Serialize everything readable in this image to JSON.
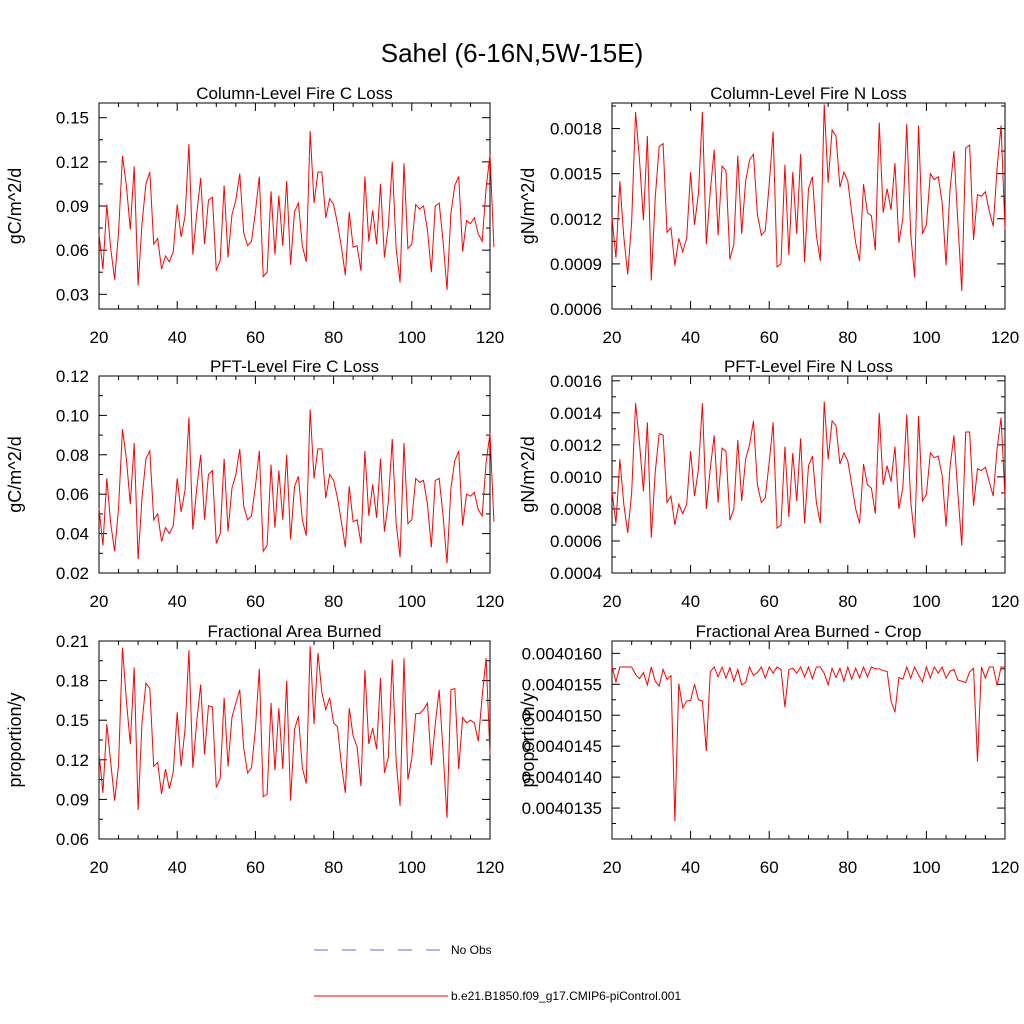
{
  "figure": {
    "title": "Sahel (6-16N,5W-15E)",
    "line_color": "#ff0000",
    "obs_color": "#6a6ad6"
  },
  "legend": {
    "obs_label": "No Obs",
    "model_label": "b.e21.B1850.f09_g17.CMIP6-piControl.001"
  },
  "chart_data": [
    {
      "type": "line",
      "title": "Column-Level Fire C Loss",
      "xlabel": "",
      "ylabel": "gC/m^2/d",
      "xlim": [
        20,
        120
      ],
      "ylim": [
        0.02,
        0.16
      ],
      "xticks": [
        20,
        40,
        60,
        80,
        100,
        120
      ],
      "yticks": [
        0.03,
        0.06,
        0.09,
        0.12,
        0.15
      ],
      "ytick_labels": [
        "0.03",
        "0.06",
        "0.09",
        "0.12",
        "0.15"
      ],
      "x_start": 20,
      "series": [
        {
          "name": "b.e21.B1850.f09_g17.CMIP6-piControl.001",
          "values": [
            0.071,
            0.047,
            0.091,
            0.061,
            0.04,
            0.072,
            0.124,
            0.104,
            0.074,
            0.117,
            0.036,
            0.078,
            0.105,
            0.113,
            0.064,
            0.068,
            0.047,
            0.056,
            0.052,
            0.059,
            0.091,
            0.069,
            0.083,
            0.132,
            0.057,
            0.085,
            0.109,
            0.064,
            0.094,
            0.096,
            0.046,
            0.053,
            0.104,
            0.055,
            0.084,
            0.094,
            0.112,
            0.072,
            0.063,
            0.066,
            0.086,
            0.11,
            0.042,
            0.045,
            0.1,
            0.057,
            0.097,
            0.063,
            0.107,
            0.05,
            0.086,
            0.092,
            0.063,
            0.052,
            0.141,
            0.092,
            0.113,
            0.113,
            0.082,
            0.095,
            0.091,
            0.078,
            0.062,
            0.043,
            0.086,
            0.062,
            0.063,
            0.046,
            0.11,
            0.066,
            0.087,
            0.064,
            0.105,
            0.055,
            0.076,
            0.12,
            0.061,
            0.038,
            0.119,
            0.061,
            0.064,
            0.091,
            0.088,
            0.09,
            0.074,
            0.045,
            0.09,
            0.092,
            0.066,
            0.033,
            0.085,
            0.104,
            0.11,
            0.059,
            0.08,
            0.078,
            0.082,
            0.071,
            0.066,
            0.102,
            0.125,
            0.062
          ]
        }
      ]
    },
    {
      "type": "line",
      "title": "Column-Level Fire N Loss",
      "xlabel": "",
      "ylabel": "gN/m^2/d",
      "xlim": [
        20,
        120
      ],
      "ylim": [
        0.0006,
        0.00197
      ],
      "xticks": [
        20,
        40,
        60,
        80,
        100,
        120
      ],
      "yticks": [
        0.0006,
        0.0009,
        0.0012,
        0.0015,
        0.0018
      ],
      "ytick_labels": [
        "0.0006",
        "0.0009",
        "0.0012",
        "0.0015",
        "0.0018"
      ],
      "x_start": 20,
      "series": [
        {
          "name": "b.e21.B1850.f09_g17.CMIP6-piControl.001",
          "values": [
            0.00121,
            0.00094,
            0.00145,
            0.00108,
            0.00083,
            0.00118,
            0.00191,
            0.00159,
            0.00119,
            0.00175,
            0.00079,
            0.00134,
            0.00168,
            0.0017,
            0.00111,
            0.00114,
            0.00089,
            0.00107,
            0.00098,
            0.00107,
            0.00151,
            0.00116,
            0.00137,
            0.00191,
            0.00103,
            0.00138,
            0.00166,
            0.00109,
            0.00155,
            0.00152,
            0.00093,
            0.00103,
            0.00162,
            0.0011,
            0.00145,
            0.00159,
            0.00163,
            0.00123,
            0.00109,
            0.00112,
            0.00143,
            0.00178,
            0.00088,
            0.0009,
            0.00156,
            0.00096,
            0.00151,
            0.0011,
            0.00163,
            0.00091,
            0.0014,
            0.00148,
            0.00109,
            0.00092,
            0.00196,
            0.00144,
            0.00179,
            0.00175,
            0.00141,
            0.00151,
            0.00145,
            0.00124,
            0.00104,
            0.00092,
            0.00143,
            0.00124,
            0.00122,
            0.00099,
            0.00184,
            0.00124,
            0.0014,
            0.00126,
            0.00157,
            0.00104,
            0.0012,
            0.00183,
            0.0011,
            0.00081,
            0.00182,
            0.0011,
            0.00116,
            0.0015,
            0.00146,
            0.00148,
            0.00131,
            0.00089,
            0.00139,
            0.00165,
            0.00118,
            0.00072,
            0.00167,
            0.00169,
            0.00106,
            0.00136,
            0.00135,
            0.00138,
            0.00125,
            0.00115,
            0.00154,
            0.00182,
            0.00113
          ]
        }
      ]
    },
    {
      "type": "line",
      "title": "PFT-Level Fire C Loss",
      "xlabel": "",
      "ylabel": "gC/m^2/d",
      "xlim": [
        20,
        120
      ],
      "ylim": [
        0.02,
        0.12
      ],
      "xticks": [
        20,
        40,
        60,
        80,
        100,
        120
      ],
      "yticks": [
        0.02,
        0.04,
        0.06,
        0.08,
        0.1,
        0.12
      ],
      "ytick_labels": [
        "0.02",
        "0.04",
        "0.06",
        "0.08",
        "0.10",
        "0.12"
      ],
      "x_start": 20,
      "series": [
        {
          "name": "b.e21.B1850.f09_g17.CMIP6-piControl.001",
          "values": [
            0.053,
            0.034,
            0.068,
            0.045,
            0.031,
            0.053,
            0.093,
            0.078,
            0.055,
            0.086,
            0.027,
            0.058,
            0.078,
            0.082,
            0.047,
            0.05,
            0.036,
            0.043,
            0.04,
            0.044,
            0.068,
            0.051,
            0.062,
            0.099,
            0.042,
            0.063,
            0.08,
            0.047,
            0.07,
            0.072,
            0.035,
            0.04,
            0.078,
            0.041,
            0.063,
            0.07,
            0.083,
            0.054,
            0.047,
            0.049,
            0.064,
            0.082,
            0.031,
            0.034,
            0.075,
            0.043,
            0.072,
            0.047,
            0.08,
            0.037,
            0.064,
            0.069,
            0.047,
            0.039,
            0.103,
            0.068,
            0.083,
            0.083,
            0.058,
            0.07,
            0.067,
            0.058,
            0.046,
            0.033,
            0.064,
            0.046,
            0.047,
            0.035,
            0.082,
            0.049,
            0.065,
            0.048,
            0.078,
            0.041,
            0.056,
            0.088,
            0.045,
            0.028,
            0.086,
            0.045,
            0.047,
            0.068,
            0.066,
            0.067,
            0.055,
            0.033,
            0.067,
            0.068,
            0.049,
            0.025,
            0.063,
            0.077,
            0.082,
            0.044,
            0.06,
            0.059,
            0.061,
            0.052,
            0.049,
            0.076,
            0.091,
            0.046
          ]
        }
      ]
    },
    {
      "type": "line",
      "title": "PFT-Level Fire N Loss",
      "xlabel": "",
      "ylabel": "gN/m^2/d",
      "xlim": [
        20,
        120
      ],
      "ylim": [
        0.0004,
        0.00163
      ],
      "xticks": [
        20,
        40,
        60,
        80,
        100,
        120
      ],
      "yticks": [
        0.0004,
        0.0006,
        0.0008,
        0.001,
        0.0012,
        0.0014,
        0.0016
      ],
      "ytick_labels": [
        "0.0004",
        "0.0006",
        "0.0008",
        "0.0010",
        "0.0012",
        "0.0014",
        "0.0016"
      ],
      "x_start": 20,
      "series": [
        {
          "name": "b.e21.B1850.f09_g17.CMIP6-piControl.001",
          "values": [
            0.00091,
            0.00071,
            0.00111,
            0.00083,
            0.00065,
            0.0009,
            0.00146,
            0.00121,
            0.00091,
            0.00134,
            0.00062,
            0.00103,
            0.00127,
            0.00126,
            0.00084,
            0.00088,
            0.0007,
            0.00083,
            0.00077,
            0.00083,
            0.00116,
            0.00088,
            0.00105,
            0.00146,
            0.0008,
            0.00105,
            0.00126,
            0.00084,
            0.00118,
            0.00116,
            0.00073,
            0.0008,
            0.00123,
            0.00085,
            0.00111,
            0.0012,
            0.00135,
            0.00095,
            0.00084,
            0.00087,
            0.00109,
            0.00134,
            0.00068,
            0.0007,
            0.00119,
            0.00075,
            0.00115,
            0.00085,
            0.00124,
            0.00071,
            0.00107,
            0.00113,
            0.00084,
            0.00071,
            0.00147,
            0.00111,
            0.00135,
            0.00132,
            0.00108,
            0.00115,
            0.0011,
            0.00095,
            0.0008,
            0.00071,
            0.00108,
            0.00095,
            0.00093,
            0.00077,
            0.0014,
            0.00095,
            0.00107,
            0.00097,
            0.00119,
            0.0008,
            0.00093,
            0.00139,
            0.00085,
            0.00062,
            0.00138,
            0.00085,
            0.00089,
            0.00115,
            0.00112,
            0.00113,
            0.00101,
            0.00069,
            0.00106,
            0.00126,
            0.0009,
            0.00057,
            0.00128,
            0.00128,
            0.00082,
            0.00105,
            0.00104,
            0.00106,
            0.00097,
            0.00088,
            0.00118,
            0.00137,
            0.00087
          ]
        }
      ]
    },
    {
      "type": "line",
      "title": "Fractional Area Burned",
      "xlabel": "",
      "ylabel": "proportion/y",
      "xlim": [
        20,
        120
      ],
      "ylim": [
        0.06,
        0.21
      ],
      "xticks": [
        20,
        40,
        60,
        80,
        100,
        120
      ],
      "yticks": [
        0.06,
        0.09,
        0.12,
        0.15,
        0.18,
        0.21
      ],
      "ytick_labels": [
        "0.06",
        "0.09",
        "0.12",
        "0.15",
        "0.18",
        "0.21"
      ],
      "x_start": 20,
      "series": [
        {
          "name": "b.e21.B1850.f09_g17.CMIP6-piControl.001",
          "values": [
            0.125,
            0.095,
            0.147,
            0.118,
            0.089,
            0.116,
            0.205,
            0.165,
            0.132,
            0.19,
            0.082,
            0.148,
            0.178,
            0.174,
            0.115,
            0.118,
            0.094,
            0.113,
            0.098,
            0.111,
            0.156,
            0.115,
            0.143,
            0.203,
            0.114,
            0.149,
            0.177,
            0.124,
            0.161,
            0.16,
            0.099,
            0.106,
            0.167,
            0.115,
            0.152,
            0.163,
            0.173,
            0.129,
            0.11,
            0.114,
            0.143,
            0.189,
            0.092,
            0.094,
            0.163,
            0.112,
            0.159,
            0.113,
            0.18,
            0.089,
            0.143,
            0.153,
            0.114,
            0.102,
            0.206,
            0.147,
            0.201,
            0.171,
            0.158,
            0.167,
            0.148,
            0.145,
            0.116,
            0.095,
            0.159,
            0.138,
            0.13,
            0.1,
            0.188,
            0.132,
            0.144,
            0.128,
            0.182,
            0.11,
            0.122,
            0.196,
            0.119,
            0.085,
            0.197,
            0.105,
            0.121,
            0.155,
            0.155,
            0.158,
            0.163,
            0.116,
            0.147,
            0.173,
            0.126,
            0.076,
            0.173,
            0.174,
            0.113,
            0.152,
            0.148,
            0.15,
            0.148,
            0.134,
            0.168,
            0.197,
            0.124
          ]
        }
      ]
    },
    {
      "type": "line",
      "title": "Fractional Area Burned - Crop",
      "xlabel": "",
      "ylabel": "proportion/y",
      "xlim": [
        20,
        120
      ],
      "ylim": [
        0.004013,
        0.0040162
      ],
      "xticks": [
        20,
        40,
        60,
        80,
        100,
        120
      ],
      "yticks": [
        0.0040135,
        0.004014,
        0.0040145,
        0.004015,
        0.0040155,
        0.004016
      ],
      "ytick_labels": [
        "0.0040135",
        "0.0040140",
        "0.0040145",
        "0.0040150",
        "0.0040155",
        "0.0040160"
      ],
      "x_start": 20,
      "series": [
        {
          "name": "b.e21.B1850.f09_g17.CMIP6-piControl.001",
          "values": [
            0.00401579,
            0.00401554,
            0.00401578,
            0.00401578,
            0.00401578,
            0.00401578,
            0.00401566,
            0.00401559,
            0.00401569,
            0.00401549,
            0.00401578,
            0.00401555,
            0.00401547,
            0.00401574,
            0.00401558,
            0.00401564,
            0.00401329,
            0.00401551,
            0.00401512,
            0.00401523,
            0.00401524,
            0.0040155,
            0.00401525,
            0.00401523,
            0.00401442,
            0.0040157,
            0.00401578,
            0.00401562,
            0.00401578,
            0.0040156,
            0.00401577,
            0.00401555,
            0.00401574,
            0.00401549,
            0.00401553,
            0.00401578,
            0.00401564,
            0.00401569,
            0.00401578,
            0.0040156,
            0.00401578,
            0.00401568,
            0.00401578,
            0.00401574,
            0.00401513,
            0.00401574,
            0.00401576,
            0.00401568,
            0.00401578,
            0.00401562,
            0.00401578,
            0.00401559,
            0.00401578,
            0.00401578,
            0.00401568,
            0.00401549,
            0.00401576,
            0.00401561,
            0.00401576,
            0.00401555,
            0.00401578,
            0.00401558,
            0.00401576,
            0.0040156,
            0.00401578,
            0.00401562,
            0.00401578,
            0.00401575,
            0.00401575,
            0.00401572,
            0.00401571,
            0.00401523,
            0.00401505,
            0.00401561,
            0.00401558,
            0.00401578,
            0.0040156,
            0.00401578,
            0.00401565,
            0.00401554,
            0.00401578,
            0.0040156,
            0.00401578,
            0.00401568,
            0.00401578,
            0.0040156,
            0.00401571,
            0.00401574,
            0.00401557,
            0.00401555,
            0.00401553,
            0.0040157,
            0.00401576,
            0.00401425,
            0.00401578,
            0.0040156,
            0.00401578,
            0.00401578,
            0.00401548,
            0.00401578,
            0.00401578
          ]
        }
      ]
    }
  ]
}
